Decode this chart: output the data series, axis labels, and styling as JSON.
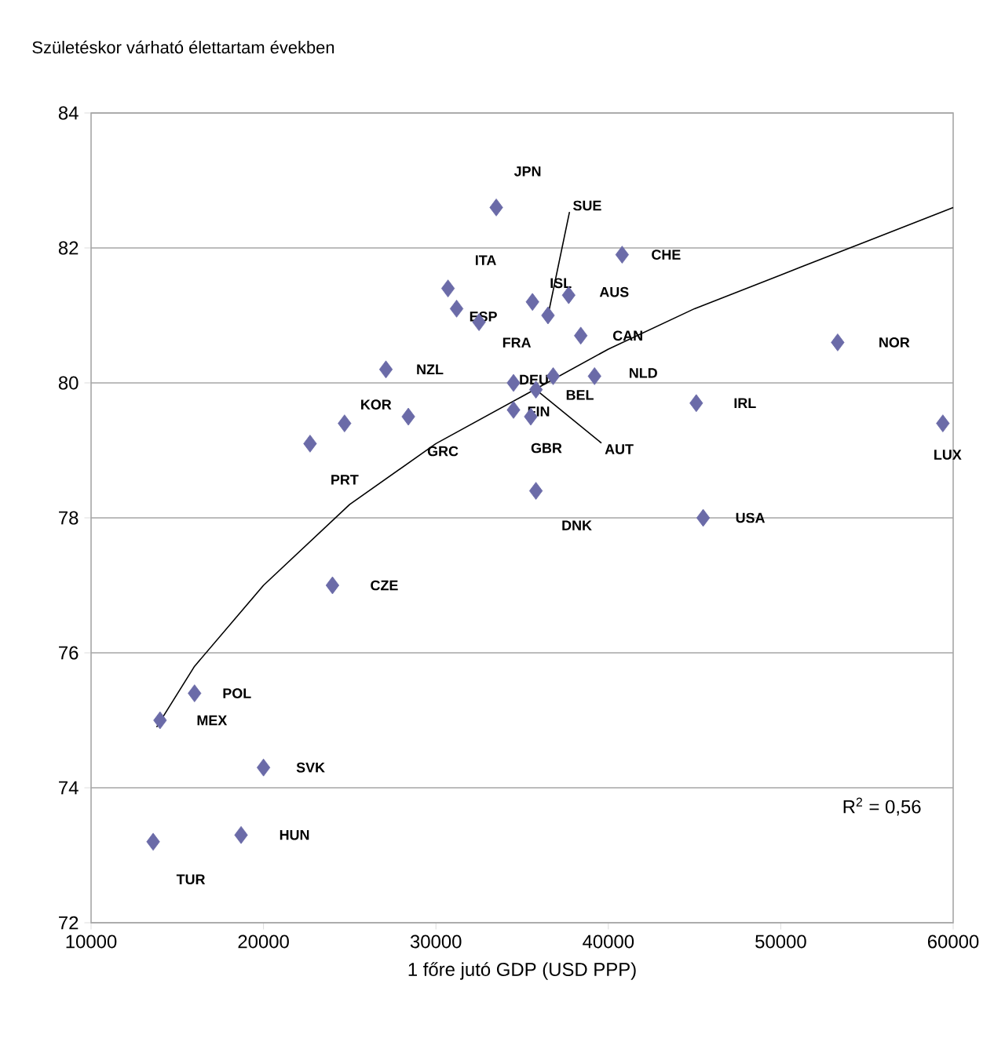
{
  "chart_data": {
    "type": "scatter",
    "title": "Születéskor várható élettartam években",
    "xlabel": "1 főre jutó GDP (USD PPP)",
    "xlim": [
      10000,
      60000
    ],
    "xticks": [
      10000,
      20000,
      30000,
      40000,
      50000,
      60000
    ],
    "ylim": [
      72,
      84
    ],
    "yticks": [
      72,
      74,
      76,
      78,
      80,
      82,
      84
    ],
    "grid": "y",
    "series": [
      {
        "marker": "diamond",
        "color": "#6b6ba8",
        "x": [
          33500,
          40800,
          30700,
          31200,
          32500,
          35600,
          36500,
          37700,
          38400,
          27100,
          39200,
          34500,
          35800,
          36800,
          34500,
          35500,
          24700,
          28400,
          22700,
          35800,
          24000,
          53300,
          45100,
          59400,
          45500,
          16000,
          14000,
          20000,
          13600,
          18700
        ],
        "values": [
          82.6,
          81.9,
          81.4,
          81.1,
          80.9,
          81.2,
          81.0,
          81.3,
          80.7,
          80.2,
          80.1,
          80.0,
          79.9,
          80.1,
          79.6,
          79.5,
          79.4,
          79.5,
          79.1,
          78.4,
          77.0,
          80.6,
          79.7,
          79.4,
          78.0,
          75.4,
          75.0,
          74.3,
          73.2,
          73.3
        ]
      },
      {
        "type": "line",
        "color": "#000000",
        "line_style": "solid",
        "x": [
          13800,
          16000,
          20000,
          25000,
          30000,
          35000,
          40000,
          45000,
          50000,
          55000,
          60000
        ],
        "values": [
          74.9,
          75.8,
          77.0,
          78.2,
          79.1,
          79.8,
          80.5,
          81.1,
          81.6,
          82.1,
          82.6
        ]
      }
    ],
    "annotations": [
      {
        "text": "JPN",
        "x": 33500,
        "y": 82.6
      },
      {
        "text": "CHE",
        "x": 40800,
        "y": 81.9
      },
      {
        "text": "ITA",
        "x": 30700,
        "y": 81.4
      },
      {
        "text": "ESP",
        "x": 31200,
        "y": 81.1
      },
      {
        "text": "FRA",
        "x": 32500,
        "y": 80.9
      },
      {
        "text": "ISL",
        "x": 35600,
        "y": 81.2
      },
      {
        "text": "SUE",
        "x": 36500,
        "y": 81.0
      },
      {
        "text": "AUS",
        "x": 37700,
        "y": 81.3
      },
      {
        "text": "CAN",
        "x": 38400,
        "y": 80.7
      },
      {
        "text": "NZL",
        "x": 27100,
        "y": 80.2
      },
      {
        "text": "NLD",
        "x": 39200,
        "y": 80.1
      },
      {
        "text": "DEU",
        "x": 34500,
        "y": 80.0
      },
      {
        "text": "AUT",
        "x": 35800,
        "y": 79.9
      },
      {
        "text": "BEL",
        "x": 36800,
        "y": 80.1
      },
      {
        "text": "FIN",
        "x": 34500,
        "y": 79.6
      },
      {
        "text": "GBR",
        "x": 35500,
        "y": 79.5
      },
      {
        "text": "KOR",
        "x": 24700,
        "y": 79.4
      },
      {
        "text": "GRC",
        "x": 28400,
        "y": 79.5
      },
      {
        "text": "PRT",
        "x": 22700,
        "y": 79.1
      },
      {
        "text": "DNK",
        "x": 35800,
        "y": 78.4
      },
      {
        "text": "CZE",
        "x": 24000,
        "y": 77.0
      },
      {
        "text": "NOR",
        "x": 53300,
        "y": 80.6
      },
      {
        "text": "IRL",
        "x": 45100,
        "y": 79.7
      },
      {
        "text": "LUX",
        "x": 59400,
        "y": 79.4
      },
      {
        "text": "USA",
        "x": 45500,
        "y": 78.0
      },
      {
        "text": "POL",
        "x": 16000,
        "y": 75.4
      },
      {
        "text": "MEX",
        "x": 14000,
        "y": 75.0
      },
      {
        "text": "SVK",
        "x": 20000,
        "y": 74.3
      },
      {
        "text": "TUR",
        "x": 13600,
        "y": 73.2
      },
      {
        "text": "HUN",
        "x": 18700,
        "y": 73.3
      },
      "R$^{2}$ = 0,56"
    ]
  }
}
